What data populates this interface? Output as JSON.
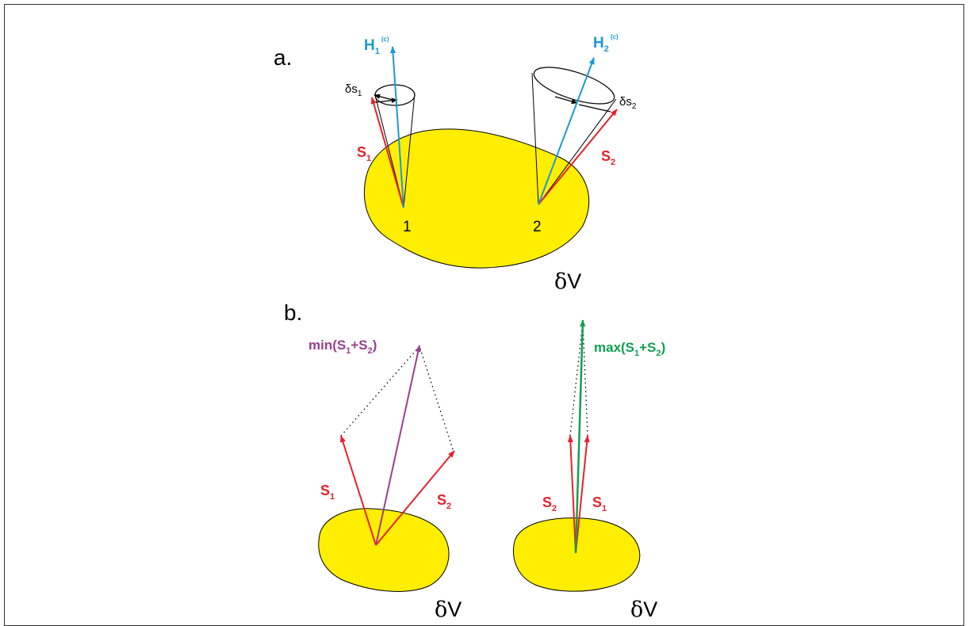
{
  "colors": {
    "blob_fill": "#ffee00",
    "red": "#e8202a",
    "blue": "#1a9ad6",
    "purple": "#9b3f8e",
    "green": "#10a050",
    "black": "#000000"
  },
  "panel_a": {
    "label": "a.",
    "volume": {
      "delta": "δ",
      "V": "V"
    },
    "point1": "1",
    "point2": "2",
    "S1": {
      "main": "S",
      "sub": "1"
    },
    "S2": {
      "main": "S",
      "sub": "2"
    },
    "H1": {
      "main": "H",
      "sub": "1",
      "sup": "(c)"
    },
    "H2": {
      "main": "H",
      "sub": "2",
      "sup": "(c)"
    },
    "ds1": {
      "main": "δs",
      "sub": "1"
    },
    "ds2": {
      "main": "δs",
      "sub": "2"
    }
  },
  "panel_b": {
    "label": "b.",
    "left": {
      "S1": {
        "main": "S",
        "sub": "1"
      },
      "S2": {
        "main": "S",
        "sub": "2"
      },
      "sum": {
        "pre": "min(S",
        "sub1": "1",
        "mid": "+S",
        "sub2": "2",
        "post": ")"
      },
      "volume": {
        "delta": "δ",
        "V": "V"
      }
    },
    "right": {
      "S1": {
        "main": "S",
        "sub": "1"
      },
      "S2": {
        "main": "S",
        "sub": "2"
      },
      "sum": {
        "pre": "max(S",
        "sub1": "1",
        "mid": "+S",
        "sub2": "2",
        "post": ")"
      },
      "volume": {
        "delta": "δ",
        "V": "V"
      }
    }
  }
}
